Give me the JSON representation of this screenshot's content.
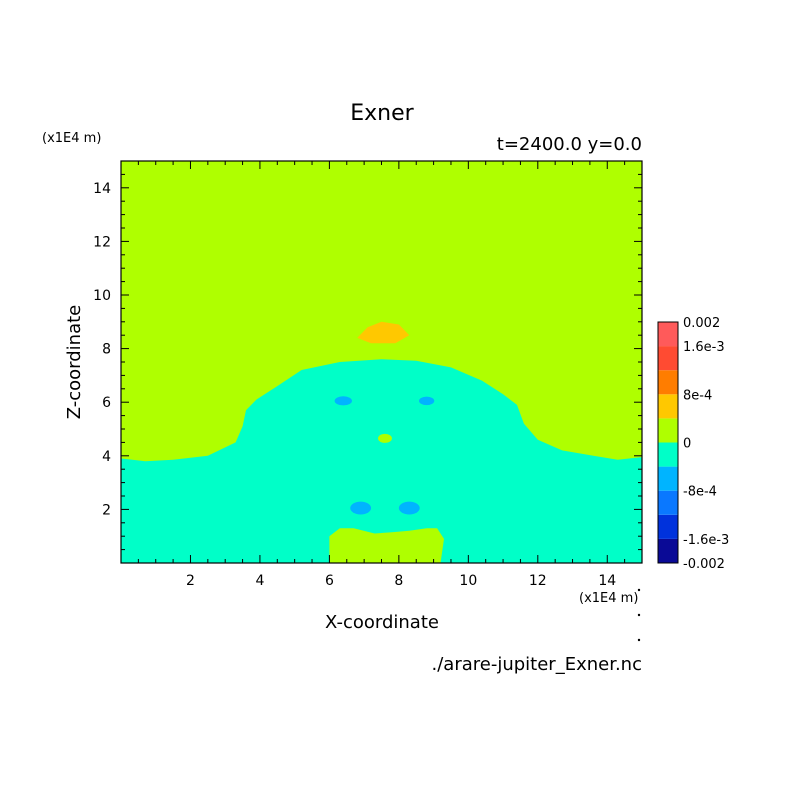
{
  "chart_data": {
    "type": "heatmap",
    "title": "Exner",
    "subtitle": "t=2400.0 y=0.0",
    "xlabel": "X-coordinate",
    "ylabel": "Z-coordinate",
    "x_unit": "(x1E4 m)",
    "y_unit": "(x1E4 m)",
    "source_file": "./arare-jupiter_Exner.nc",
    "xlim": [
      0,
      15
    ],
    "ylim": [
      0,
      15
    ],
    "x_ticks": [
      2,
      4,
      6,
      8,
      10,
      12,
      14
    ],
    "y_ticks": [
      2,
      4,
      6,
      8,
      10,
      12,
      14
    ],
    "x_tick_labels": [
      "2",
      "4",
      "6",
      "8",
      "10",
      "12",
      "14"
    ],
    "y_tick_labels": [
      "2",
      "4",
      "6",
      "8",
      "10",
      "12",
      "14"
    ],
    "background_level": "0 to 4e-4",
    "colorbar": {
      "levels": [
        -0.002,
        -0.0016,
        -0.0012,
        -0.0008,
        -0.0004,
        0,
        0.0004,
        0.0008,
        0.0012,
        0.0016,
        0.002
      ],
      "colors": [
        "#0a0a96",
        "#0032dc",
        "#0a78ff",
        "#00b4ff",
        "#00ffc8",
        "#afff00",
        "#ffc800",
        "#ff7d00",
        "#ff4b32",
        "#ff5a5a"
      ],
      "labels": [
        {
          "value": 0.002,
          "text": "0.002"
        },
        {
          "value": 0.0016,
          "text": "1.6e-3"
        },
        {
          "value": 0.0008,
          "text": "8e-4"
        },
        {
          "value": 0,
          "text": "0"
        },
        {
          "value": -0.0008,
          "text": "-8e-4"
        },
        {
          "value": -0.0016,
          "text": "-1.6e-3"
        },
        {
          "value": -0.002,
          "text": "-0.002"
        }
      ]
    },
    "regions": [
      {
        "name": "lower-negative-region",
        "level": "-4e-4 to 0",
        "color": "#00ffc8",
        "points": [
          [
            0,
            0
          ],
          [
            0,
            3.9
          ],
          [
            0.7,
            3.8
          ],
          [
            1.5,
            3.85
          ],
          [
            2.5,
            4.0
          ],
          [
            3.3,
            4.5
          ],
          [
            3.5,
            5.1
          ],
          [
            3.6,
            5.7
          ],
          [
            3.9,
            6.1
          ],
          [
            4.5,
            6.6
          ],
          [
            5.2,
            7.2
          ],
          [
            6.3,
            7.5
          ],
          [
            7.5,
            7.6
          ],
          [
            8.5,
            7.55
          ],
          [
            9.5,
            7.3
          ],
          [
            10.4,
            6.8
          ],
          [
            11.0,
            6.3
          ],
          [
            11.4,
            5.9
          ],
          [
            11.6,
            5.2
          ],
          [
            12.0,
            4.6
          ],
          [
            12.7,
            4.2
          ],
          [
            13.6,
            4.0
          ],
          [
            14.3,
            3.85
          ],
          [
            15,
            3.95
          ],
          [
            15,
            0
          ]
        ]
      },
      {
        "name": "bottom-center-positive-region",
        "level": "0 to 4e-4",
        "color": "#afff00",
        "points": [
          [
            6.0,
            0
          ],
          [
            6.0,
            1.0
          ],
          [
            6.3,
            1.3
          ],
          [
            6.7,
            1.3
          ],
          [
            7.3,
            1.1
          ],
          [
            7.8,
            1.15
          ],
          [
            8.3,
            1.2
          ],
          [
            8.8,
            1.3
          ],
          [
            9.1,
            1.3
          ],
          [
            9.3,
            0.9
          ],
          [
            9.2,
            0
          ]
        ]
      },
      {
        "name": "top-positive-lens",
        "level": "4e-4 to 8e-4",
        "color": "#ffc800",
        "points": [
          [
            6.8,
            8.4
          ],
          [
            7.1,
            8.8
          ],
          [
            7.5,
            9.0
          ],
          [
            8.0,
            8.9
          ],
          [
            8.3,
            8.5
          ],
          [
            7.9,
            8.2
          ],
          [
            7.2,
            8.2
          ]
        ]
      }
    ],
    "blobs": [
      {
        "name": "left-upper-negative-blob",
        "x": 6.4,
        "y": 6.05,
        "rx": 0.25,
        "ry": 0.17,
        "level": "-8e-4 to -4e-4",
        "color": "#00b4ff"
      },
      {
        "name": "right-upper-negative-blob",
        "x": 8.8,
        "y": 6.05,
        "rx": 0.22,
        "ry": 0.16,
        "level": "-8e-4 to -4e-4",
        "color": "#00b4ff"
      },
      {
        "name": "center-positive-blob",
        "x": 7.6,
        "y": 4.65,
        "rx": 0.2,
        "ry": 0.17,
        "level": "0 to 4e-4",
        "color": "#afff00"
      },
      {
        "name": "left-lower-negative-blob",
        "x": 6.9,
        "y": 2.05,
        "rx": 0.3,
        "ry": 0.24,
        "level": "-8e-4 to -4e-4",
        "color": "#00b4ff"
      },
      {
        "name": "right-lower-negative-blob",
        "x": 8.3,
        "y": 2.05,
        "rx": 0.3,
        "ry": 0.24,
        "level": "-8e-4 to -4e-4",
        "color": "#00b4ff"
      }
    ]
  }
}
